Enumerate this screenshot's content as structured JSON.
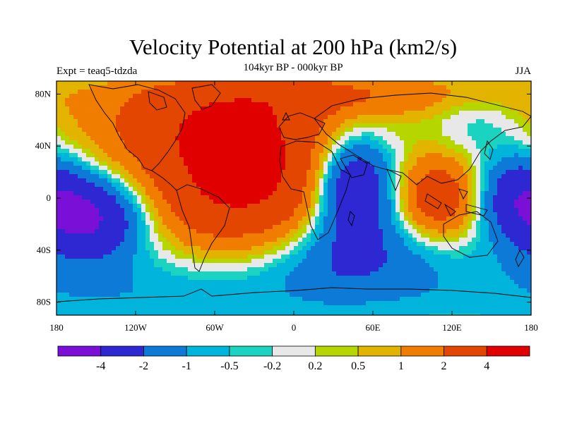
{
  "title": "Velocity Potential at 200 hPa (km2/s)",
  "subtitle": "104kyr BP - 000kyr BP",
  "experiment": "Expt = teaq5-tdzda",
  "season": "JJA",
  "map": {
    "projection": "cylindrical-equidistant",
    "lon_range": [
      -180,
      180
    ],
    "lat_range": [
      -90,
      90
    ],
    "lon_ticks": [
      {
        "value": -180,
        "label": "180"
      },
      {
        "value": -120,
        "label": "120W"
      },
      {
        "value": -60,
        "label": "60W"
      },
      {
        "value": 0,
        "label": "0"
      },
      {
        "value": 60,
        "label": "60E"
      },
      {
        "value": 120,
        "label": "120E"
      },
      {
        "value": 180,
        "label": "180"
      }
    ],
    "lat_ticks": [
      {
        "value": 80,
        "label": "80N"
      },
      {
        "value": 40,
        "label": "40N"
      },
      {
        "value": 0,
        "label": "0"
      },
      {
        "value": -40,
        "label": "40S"
      },
      {
        "value": -80,
        "label": "80S"
      }
    ],
    "field_centers": [
      {
        "lon": -40,
        "lat": 10,
        "value": 4.5,
        "sigma_lon": 55,
        "sigma_lat": 35
      },
      {
        "lon": -60,
        "lat": 60,
        "value": 2.8,
        "sigma_lon": 70,
        "sigma_lat": 25
      },
      {
        "lon": 110,
        "lat": 0,
        "value": 3.2,
        "sigma_lon": 22,
        "sigma_lat": 22
      },
      {
        "lon": 45,
        "lat": 10,
        "value": -4.5,
        "sigma_lon": 22,
        "sigma_lat": 28
      },
      {
        "lon": -155,
        "lat": -15,
        "value": -4.5,
        "sigma_lon": 30,
        "sigma_lat": 22
      },
      {
        "lon": 170,
        "lat": 5,
        "value": -2.5,
        "sigma_lon": 22,
        "sigma_lat": 22
      },
      {
        "lon": 45,
        "lat": -45,
        "value": -2.0,
        "sigma_lon": 45,
        "sigma_lat": 25
      },
      {
        "lon": -120,
        "lat": -70,
        "value": -1.0,
        "sigma_lon": 120,
        "sigma_lat": 22
      },
      {
        "lon": 40,
        "lat": 80,
        "value": 1.6,
        "sigma_lon": 90,
        "sigma_lat": 12
      },
      {
        "lon": 140,
        "lat": 60,
        "value": -0.6,
        "sigma_lon": 22,
        "sigma_lat": 18
      }
    ]
  },
  "colorbar": {
    "levels": [
      "-4",
      "-2",
      "-1",
      "-0.5",
      "-0.2",
      "0.2",
      "0.5",
      "1",
      "2",
      "4"
    ],
    "level_values": [
      -4,
      -2,
      -1,
      -0.5,
      -0.2,
      0.2,
      0.5,
      1,
      2,
      4
    ],
    "colors": [
      "#7a0fd8",
      "#2d28d2",
      "#0c7ad6",
      "#00b4dc",
      "#1ad3c0",
      "#e8e8e8",
      "#b6d600",
      "#e2b400",
      "#f07c00",
      "#e24600",
      "#e00000"
    ]
  }
}
